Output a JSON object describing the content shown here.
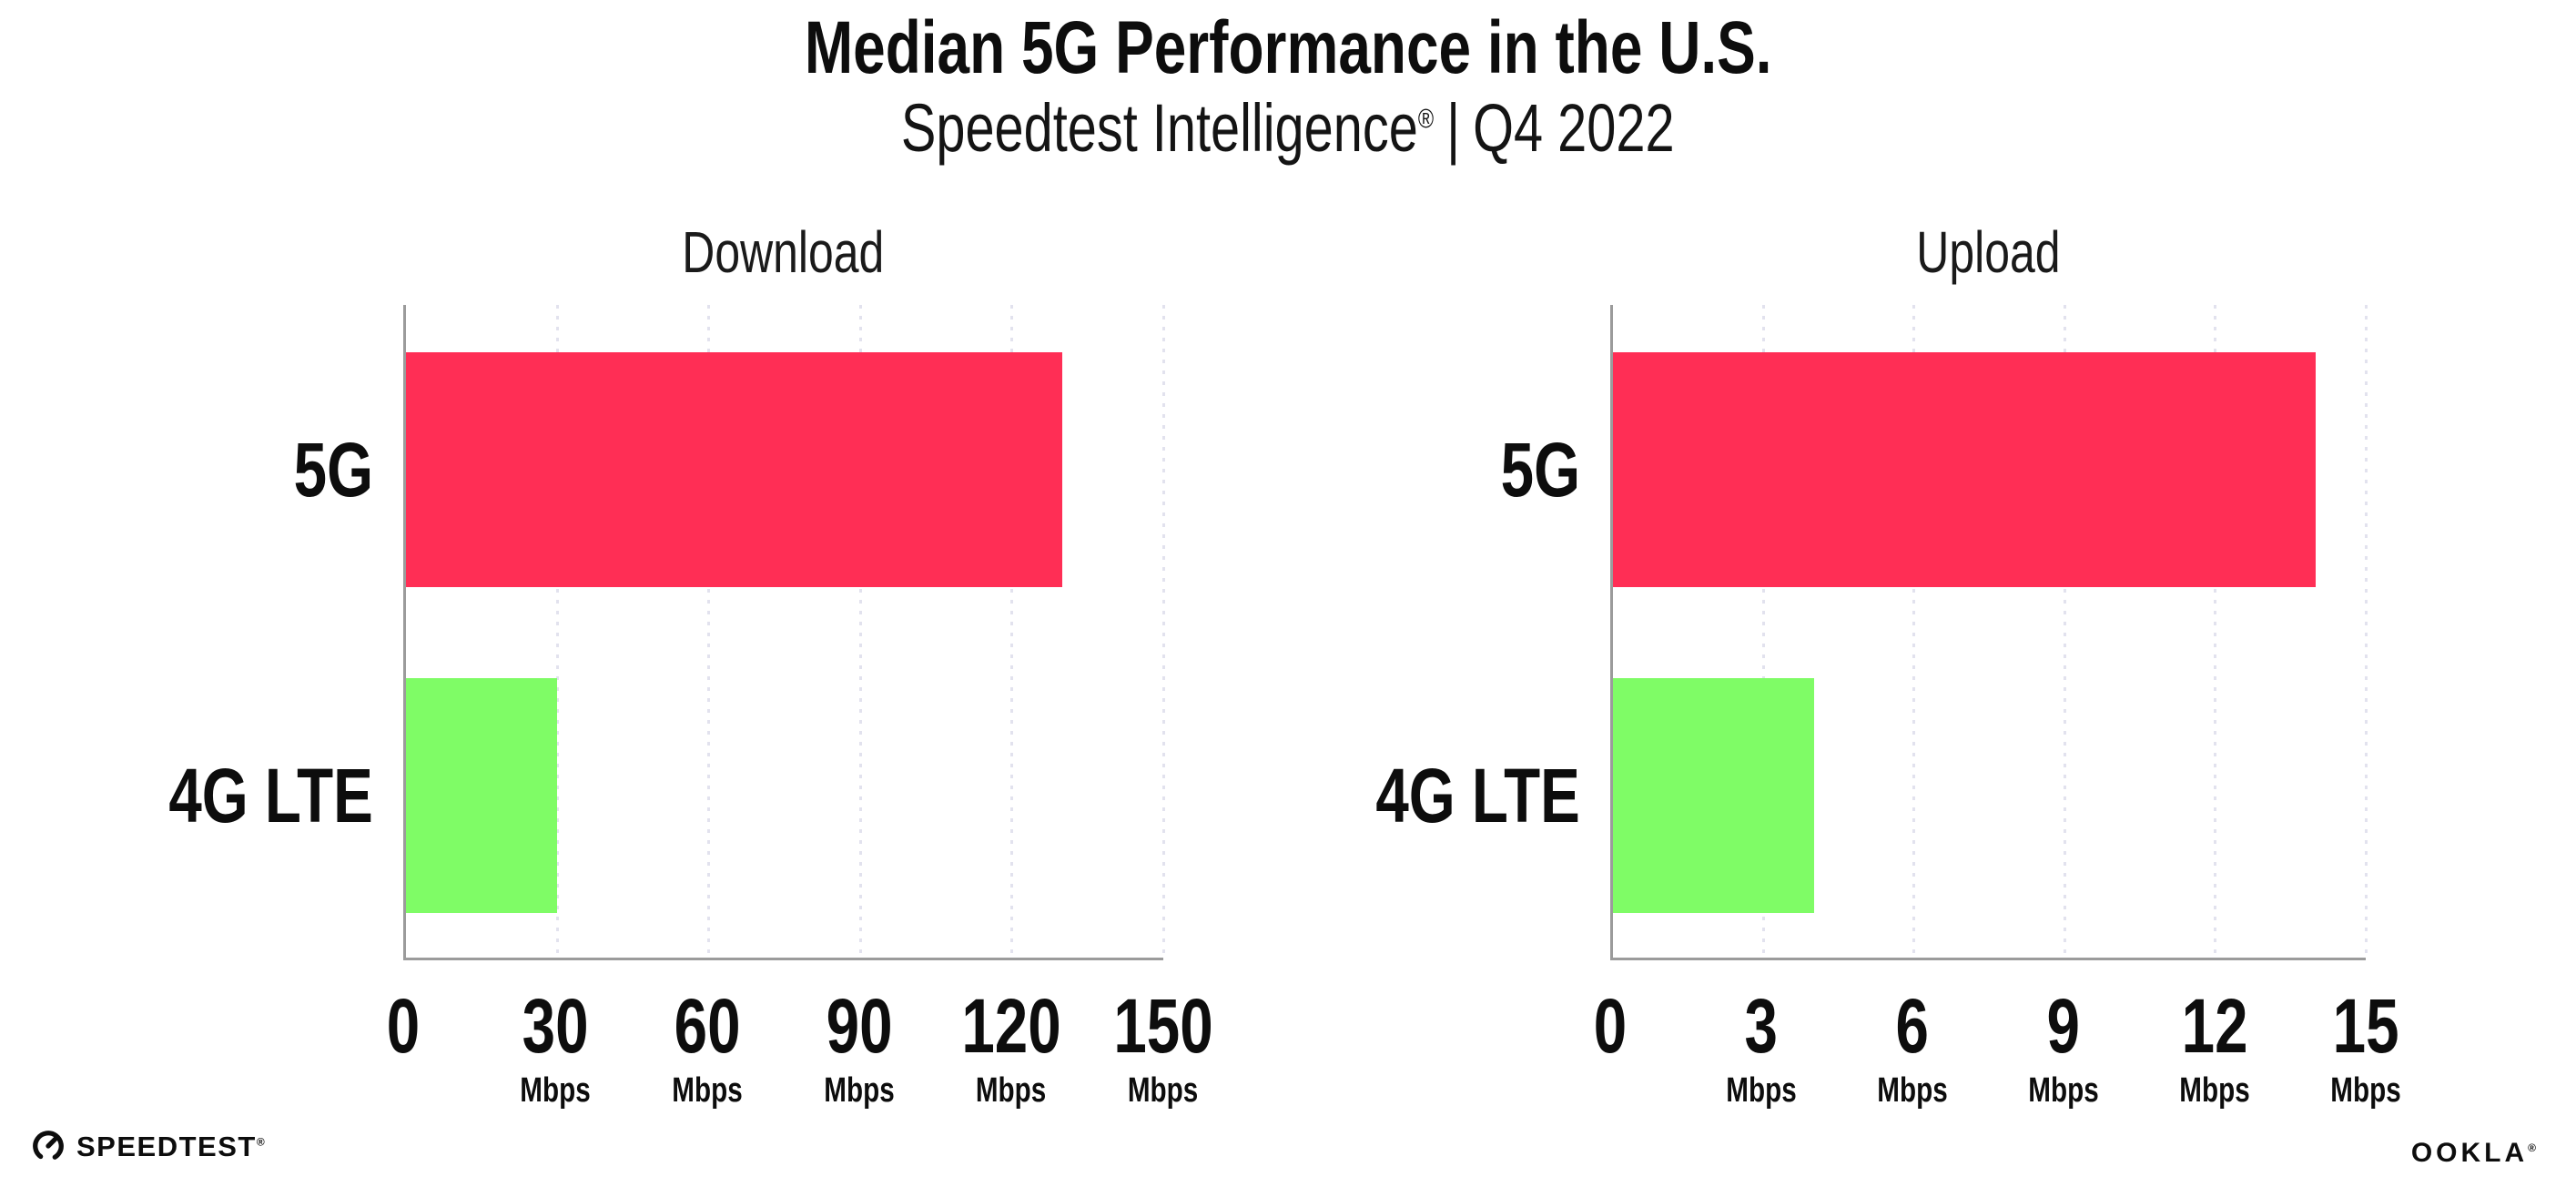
{
  "header": {
    "title": "Median 5G Performance in the U.S.",
    "subtitle_brand": "Speedtest Intelligence",
    "subtitle_reg": "®",
    "subtitle_sep": "|",
    "subtitle_period": "Q4 2022"
  },
  "colors": {
    "bar_5g": "#ff2e55",
    "bar_4g": "#7ffc66",
    "axis": "#9b9b9b",
    "grid_dot": "#e2e2ee",
    "text": "#0d0d0d"
  },
  "chart_data": [
    {
      "type": "bar",
      "orientation": "horizontal",
      "title": "Download",
      "categories": [
        "5G",
        "4G LTE"
      ],
      "values": [
        130,
        30
      ],
      "unit": "Mbps",
      "xlim": [
        0,
        150
      ],
      "xticks": [
        0,
        30,
        60,
        90,
        120,
        150
      ],
      "bar_colors": [
        "#ff2e55",
        "#7ffc66"
      ],
      "grid": "dotted-vertical",
      "legend": "none"
    },
    {
      "type": "bar",
      "orientation": "horizontal",
      "title": "Upload",
      "categories": [
        "5G",
        "4G LTE"
      ],
      "values": [
        14,
        4
      ],
      "unit": "Mbps",
      "xlim": [
        0,
        15
      ],
      "xticks": [
        0,
        3,
        6,
        9,
        12,
        15
      ],
      "bar_colors": [
        "#ff2e55",
        "#7ffc66"
      ],
      "grid": "dotted-vertical",
      "legend": "none"
    }
  ],
  "footer": {
    "speedtest_label": "SPEEDTEST",
    "speedtest_reg": "®",
    "ookla_label": "OOKLA",
    "ookla_reg": "®"
  }
}
